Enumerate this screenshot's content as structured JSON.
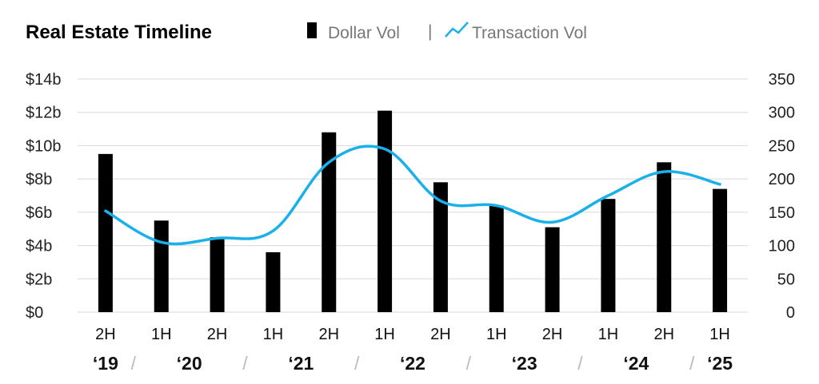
{
  "chart_data": {
    "type": "bar",
    "title": "Real Estate Timeline",
    "categories": [
      "2H",
      "1H",
      "2H",
      "1H",
      "2H",
      "1H",
      "2H",
      "1H",
      "2H",
      "1H",
      "2H",
      "1H"
    ],
    "year_labels": [
      {
        "label": "‘19",
        "start": 0,
        "end": 0
      },
      {
        "label": "‘20",
        "start": 1,
        "end": 2
      },
      {
        "label": "‘21",
        "start": 3,
        "end": 4
      },
      {
        "label": "‘22",
        "start": 5,
        "end": 6
      },
      {
        "label": "‘23",
        "start": 7,
        "end": 8
      },
      {
        "label": "‘24",
        "start": 9,
        "end": 10
      },
      {
        "label": "‘25",
        "start": 11,
        "end": 11
      }
    ],
    "series": [
      {
        "name": "Dollar Vol",
        "type": "bar",
        "axis": "left",
        "color": "#000000",
        "values": [
          9.5,
          5.5,
          4.5,
          3.6,
          10.8,
          12.1,
          7.8,
          6.4,
          5.1,
          6.8,
          9.0,
          7.4
        ]
      },
      {
        "name": "Transaction Vol",
        "type": "line",
        "axis": "right",
        "color": "#1ab0ea",
        "values": [
          152,
          105,
          111,
          122,
          225,
          245,
          167,
          160,
          135,
          175,
          211,
          192
        ]
      }
    ],
    "y_left": {
      "min": 0,
      "max": 14,
      "ticks": [
        "$0",
        "$2b",
        "$4b",
        "$6b",
        "$8b",
        "$10b",
        "$12b",
        "$14b"
      ]
    },
    "y_right": {
      "min": 0,
      "max": 350,
      "ticks": [
        "0",
        "50",
        "100",
        "150",
        "200",
        "250",
        "300",
        "350"
      ]
    },
    "grid": true,
    "legend_position": "top",
    "legend_separator": "|",
    "title_color": "#1ab0ea"
  }
}
